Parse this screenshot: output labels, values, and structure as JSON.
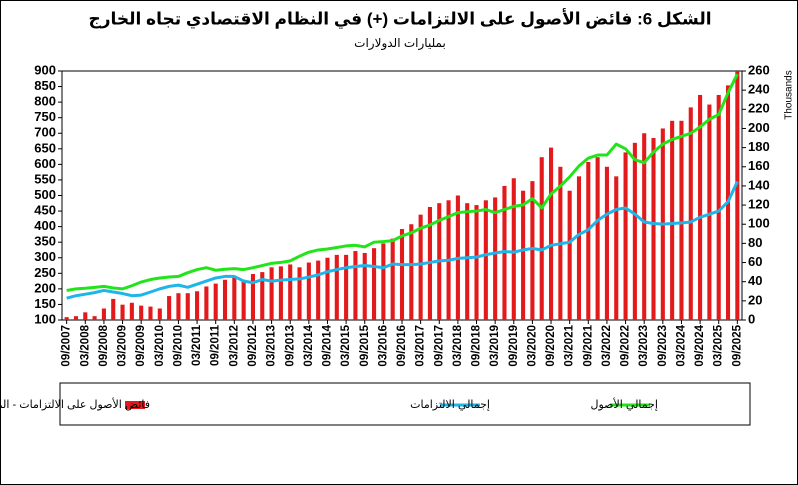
{
  "chart_data": {
    "type": "combo",
    "title": "الشكل 6: فائض الأصول على الالتزامات (+) في النظام الاقتصادي تجاه الخارج",
    "subtitle": "بمليارات الدولارات",
    "y2_label": "Thousands",
    "categories": [
      "09/2007",
      null,
      "03/2008",
      null,
      "09/2008",
      null,
      "03/2009",
      null,
      "09/2009",
      null,
      "03/2010",
      null,
      "09/2010",
      null,
      "03/2011",
      null,
      "09/2011",
      null,
      "03/2012",
      null,
      "09/2012",
      null,
      "03/2013",
      null,
      "09/2013",
      null,
      "03/2014",
      null,
      "09/2014",
      null,
      "03/2015",
      null,
      "09/2015",
      null,
      "03/2016",
      null,
      "09/2016",
      null,
      "03/2017",
      null,
      "09/2017",
      null,
      "03/2018",
      null,
      "09/2018",
      null,
      "03/2019",
      null,
      "09/2019",
      null,
      "03/2020",
      null,
      "09/2020",
      null,
      "03/2021",
      null,
      "09/2021",
      null,
      "03/2022",
      null,
      "09/2022",
      null,
      "03/2023",
      null,
      "09/2023",
      null,
      "03/2024",
      null,
      "09/2024",
      null,
      "03/2025",
      null,
      "09/2025"
    ],
    "series": [
      {
        "name": "فائض الأصول على الالتزامات - المحور الأيمن",
        "type": "bar",
        "axis": "y2",
        "color": "#e31a1c",
        "values": [
          3,
          4,
          8,
          4,
          12,
          22,
          16,
          18,
          15,
          14,
          12,
          25,
          28,
          28,
          30,
          35,
          38,
          42,
          45,
          42,
          48,
          50,
          55,
          56,
          58,
          55,
          60,
          62,
          65,
          68,
          68,
          72,
          70,
          75,
          80,
          85,
          95,
          100,
          110,
          118,
          122,
          125,
          130,
          122,
          120,
          125,
          128,
          140,
          148,
          135,
          145,
          170,
          180,
          160,
          135,
          150,
          165,
          170,
          160,
          150,
          175,
          185,
          195,
          190,
          200,
          208,
          208,
          222,
          235,
          225,
          235,
          245,
          260
        ]
      },
      {
        "name": "إجمالي الالتزامات",
        "type": "line",
        "color": "#1fb5e8",
        "values": [
          170,
          178,
          183,
          188,
          195,
          190,
          185,
          178,
          180,
          190,
          200,
          208,
          212,
          205,
          215,
          225,
          235,
          240,
          240,
          225,
          220,
          230,
          225,
          228,
          230,
          232,
          238,
          245,
          255,
          262,
          268,
          272,
          275,
          272,
          268,
          280,
          278,
          278,
          280,
          285,
          290,
          292,
          298,
          300,
          302,
          310,
          315,
          320,
          318,
          325,
          330,
          325,
          340,
          345,
          350,
          375,
          390,
          420,
          440,
          455,
          460,
          440,
          415,
          410,
          408,
          410,
          412,
          415,
          430,
          440,
          450,
          480,
          545
        ]
      },
      {
        "name": "إجمالي الأصول",
        "type": "line",
        "color": "#22e41a",
        "values": [
          195,
          200,
          202,
          205,
          208,
          203,
          200,
          210,
          222,
          230,
          235,
          238,
          240,
          252,
          262,
          268,
          260,
          263,
          265,
          262,
          268,
          275,
          282,
          285,
          290,
          305,
          318,
          325,
          328,
          333,
          338,
          340,
          335,
          350,
          352,
          355,
          370,
          380,
          395,
          405,
          420,
          432,
          445,
          448,
          450,
          455,
          445,
          455,
          465,
          470,
          490,
          460,
          505,
          530,
          560,
          595,
          620,
          630,
          630,
          665,
          650,
          615,
          605,
          640,
          665,
          680,
          690,
          700,
          720,
          745,
          760,
          830,
          890
        ]
      }
    ],
    "ylim": [
      100,
      900
    ],
    "yticks": [
      100,
      150,
      200,
      250,
      300,
      350,
      400,
      450,
      500,
      550,
      600,
      650,
      700,
      750,
      800,
      850,
      900
    ],
    "y2lim": [
      0,
      260
    ],
    "y2ticks": [
      0,
      20,
      40,
      60,
      80,
      100,
      120,
      140,
      160,
      180,
      200,
      220,
      240,
      260
    ],
    "grid": false
  }
}
